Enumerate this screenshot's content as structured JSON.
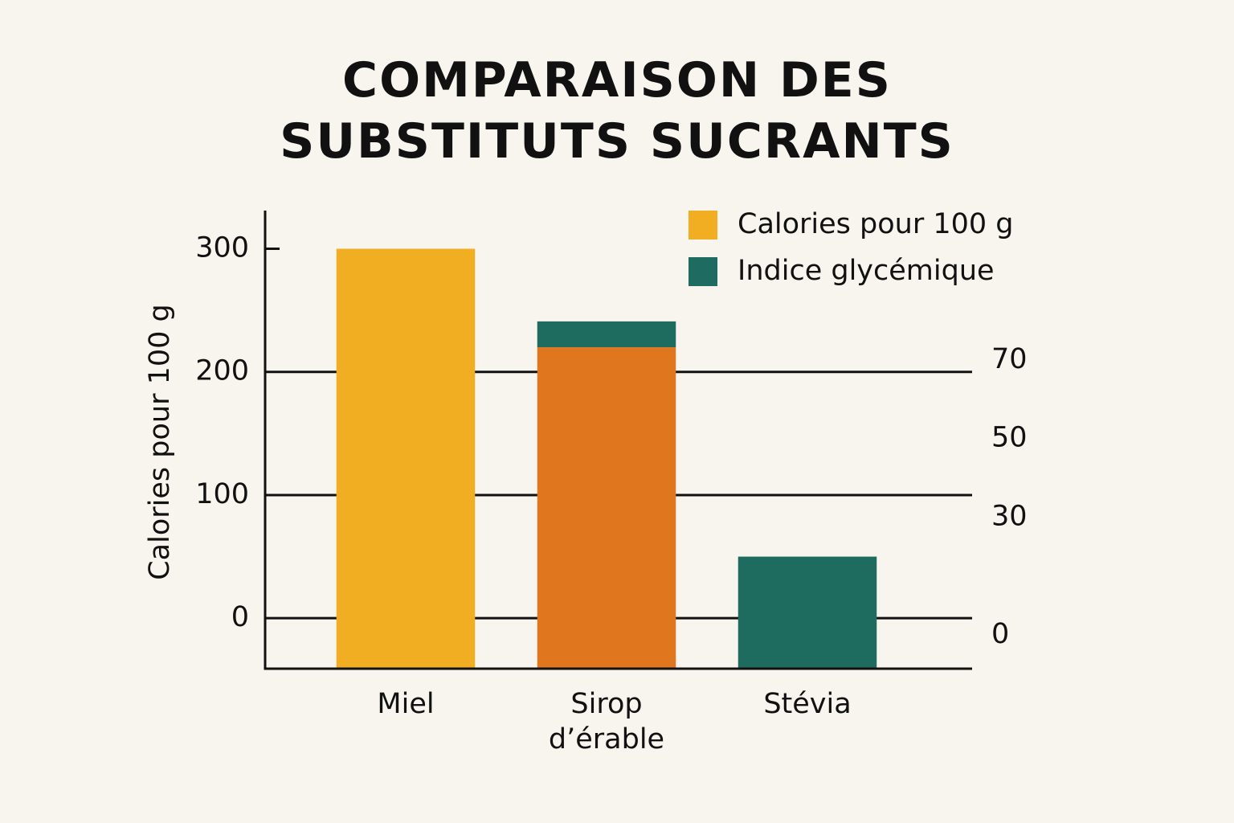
{
  "chart_data": {
    "type": "bar",
    "title": "COMPARAISON DES SUBSTITUTS SUCRANTS",
    "y_label": "Calories pour 100 g",
    "categories": [
      "Miel",
      "Sirop d’érable",
      "Stévia"
    ],
    "series": [
      {
        "name": "Calories pour 100 g",
        "color": "#f2ae22",
        "colors": [
          "#f2ae22",
          "#e0761e",
          null
        ],
        "values": [
          300,
          220,
          null
        ]
      },
      {
        "name": "Indice glycémique",
        "color": "#1e6b60",
        "values": [
          null,
          21,
          50
        ]
      }
    ],
    "stacked": true,
    "ylim": [
      -41,
      331
    ],
    "yticks": [
      0,
      100,
      200,
      300
    ],
    "y2lim": [
      -8.6,
      108
    ],
    "y2ticks": [
      0,
      30,
      50,
      70
    ],
    "grid": true,
    "legend": "top-right"
  }
}
